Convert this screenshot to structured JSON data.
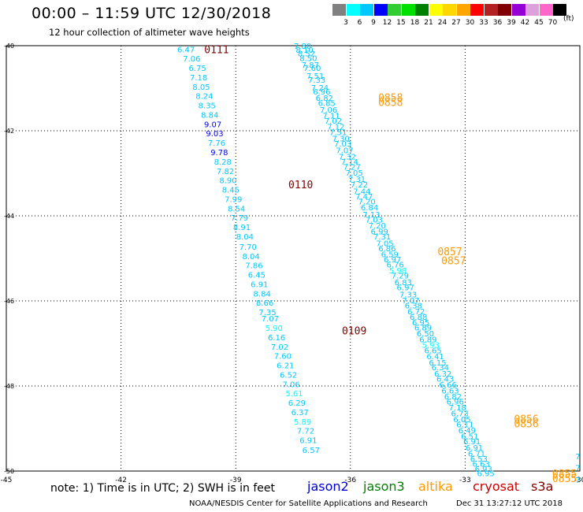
{
  "header": {
    "title": "00:00 – 11:59 UTC 12/30/2018",
    "subtitle": "12 hour collection of altimeter wave heights"
  },
  "color_scale": {
    "labels": [
      "3",
      "6",
      "9",
      "12",
      "15",
      "18",
      "21",
      "24",
      "27",
      "30",
      "33",
      "36",
      "39",
      "42",
      "45",
      "70"
    ],
    "units": "(ft)",
    "colors": [
      "#808080",
      "#00ffff",
      "#00c8ff",
      "#0000ff",
      "#32cd32",
      "#00e000",
      "#008000",
      "#ffff00",
      "#ffd700",
      "#ffa500",
      "#ff0000",
      "#b22222",
      "#800000",
      "#9400d3",
      "#dda0dd",
      "#ff66cc",
      "#000000"
    ]
  },
  "footer": {
    "note": "note:  1) Time is in UTC;  2) SWH is in feet",
    "missions": [
      {
        "name": "jason2",
        "color": "#0000cc"
      },
      {
        "name": "jason3",
        "color": "#008000"
      },
      {
        "name": "altika",
        "color": "#ff9900"
      },
      {
        "name": "cryosat",
        "color": "#cc0000"
      },
      {
        "name": "s3a",
        "color": "#800000"
      }
    ],
    "credit": "NOAA/NESDIS Center for Satellite Applications and Research",
    "timestamp": "Dec 31 13:27:12 UTC 2018"
  },
  "chart_data": {
    "type": "scatter",
    "title": "00:00 – 11:59 UTC 12/30/2018",
    "xlabel": "",
    "ylabel": "",
    "xlim": [
      -45,
      -30
    ],
    "ylim": [
      -50,
      -40
    ],
    "x_ticks": [
      "-45",
      "-42",
      "-39",
      "-36",
      "-33",
      "-30"
    ],
    "x_tick_values": [
      -45,
      -42,
      -39,
      -36,
      -33,
      -30
    ],
    "y_ticks": [
      "-40",
      "-42",
      "-44",
      "-46",
      "-48",
      "-50"
    ],
    "y_tick_values": [
      -40,
      -42,
      -44,
      -46,
      -48,
      -50
    ],
    "grid": true,
    "tracks": [
      {
        "name": "s3a",
        "time_labels": [
          {
            "text": "0111",
            "x": -39.5,
            "y": -40.08
          },
          {
            "text": "0110",
            "x": -37.3,
            "y": -43.26
          },
          {
            "text": "0109",
            "x": -35.9,
            "y": -46.69
          }
        ],
        "time_color": "#800000",
        "points": [
          {
            "x": -40.3,
            "y": -40.08,
            "v": "6.47"
          },
          {
            "x": -40.15,
            "y": -40.3,
            "v": "7.06"
          },
          {
            "x": -40.0,
            "y": -40.52,
            "v": "6.75"
          },
          {
            "x": -39.97,
            "y": -40.74,
            "v": "7.18"
          },
          {
            "x": -39.9,
            "y": -40.96,
            "v": "8.05"
          },
          {
            "x": -39.82,
            "y": -41.18,
            "v": "8.24"
          },
          {
            "x": -39.75,
            "y": -41.4,
            "v": "8.35"
          },
          {
            "x": -39.68,
            "y": -41.62,
            "v": "8.84"
          },
          {
            "x": -39.6,
            "y": -41.84,
            "v": "9.07"
          },
          {
            "x": -39.55,
            "y": -42.06,
            "v": "9.03"
          },
          {
            "x": -39.5,
            "y": -42.28,
            "v": "7.76"
          },
          {
            "x": -39.43,
            "y": -42.5,
            "v": "9.78"
          },
          {
            "x": -39.34,
            "y": -42.72,
            "v": "8.28"
          },
          {
            "x": -39.27,
            "y": -42.94,
            "v": "7.82"
          },
          {
            "x": -39.2,
            "y": -43.16,
            "v": "8.90"
          },
          {
            "x": -39.13,
            "y": -43.38,
            "v": "8.45"
          },
          {
            "x": -39.06,
            "y": -43.6,
            "v": "7.99"
          },
          {
            "x": -38.98,
            "y": -43.82,
            "v": "8.54"
          },
          {
            "x": -38.9,
            "y": -44.04,
            "v": "7.79"
          },
          {
            "x": -38.84,
            "y": -44.26,
            "v": "8.91"
          },
          {
            "x": -38.76,
            "y": -44.48,
            "v": "8.04"
          },
          {
            "x": -38.68,
            "y": -44.72,
            "v": "7.70"
          },
          {
            "x": -38.6,
            "y": -44.94,
            "v": "8.04"
          },
          {
            "x": -38.52,
            "y": -45.16,
            "v": "7.86"
          },
          {
            "x": -38.45,
            "y": -45.38,
            "v": "6.45"
          },
          {
            "x": -38.38,
            "y": -45.6,
            "v": "6.91"
          },
          {
            "x": -38.31,
            "y": -45.82,
            "v": "8.84"
          },
          {
            "x": -38.24,
            "y": -46.04,
            "v": "8.66"
          },
          {
            "x": -38.17,
            "y": -46.26,
            "v": "7.35"
          },
          {
            "x": -38.1,
            "y": -46.41,
            "v": "7.07"
          },
          {
            "x": -38.0,
            "y": -46.63,
            "v": "5.90"
          },
          {
            "x": -37.93,
            "y": -46.85,
            "v": "6.16"
          },
          {
            "x": -37.85,
            "y": -47.07,
            "v": "7.02"
          },
          {
            "x": -37.77,
            "y": -47.29,
            "v": "7.60"
          },
          {
            "x": -37.7,
            "y": -47.51,
            "v": "6.21"
          },
          {
            "x": -37.62,
            "y": -47.73,
            "v": "6.52"
          },
          {
            "x": -37.55,
            "y": -47.95,
            "v": "7.06"
          },
          {
            "x": -37.47,
            "y": -48.17,
            "v": "5.61"
          },
          {
            "x": -37.4,
            "y": -48.39,
            "v": "6.29"
          },
          {
            "x": -37.32,
            "y": -48.61,
            "v": "6.37"
          },
          {
            "x": -37.25,
            "y": -48.83,
            "v": "5.89"
          },
          {
            "x": -37.17,
            "y": -49.05,
            "v": "7.72"
          },
          {
            "x": -37.1,
            "y": -49.27,
            "v": "6.91"
          },
          {
            "x": -37.03,
            "y": -49.5,
            "v": "6.57"
          }
        ]
      },
      {
        "name": "altika",
        "time_labels": [
          {
            "text": "0858",
            "x": -34.95,
            "y": -41.21
          },
          {
            "text": "0858",
            "x": -34.95,
            "y": -41.32
          },
          {
            "text": "0857",
            "x": -33.4,
            "y": -44.83
          },
          {
            "text": "0857",
            "x": -33.3,
            "y": -45.05
          },
          {
            "text": "0856",
            "x": -31.4,
            "y": -48.77
          },
          {
            "text": "0856",
            "x": -31.4,
            "y": -48.88
          },
          {
            "text": "0855",
            "x": -30.4,
            "y": -50.06
          },
          {
            "text": "0855",
            "x": -30.4,
            "y": -50.17
          }
        ],
        "time_color": "#ff9900",
        "points": [
          {
            "x": -37.25,
            "y": -40.0,
            "v": "7.80"
          },
          {
            "x": -37.2,
            "y": -40.09,
            "v": "8.10"
          },
          {
            "x": -37.15,
            "y": -40.18,
            "v": "8.52"
          },
          {
            "x": -37.1,
            "y": -40.29,
            "v": "8.50"
          },
          {
            "x": -37.05,
            "y": -40.44,
            "v": "7.87"
          },
          {
            "x": -37.0,
            "y": -40.52,
            "v": "7.60"
          },
          {
            "x": -36.92,
            "y": -40.7,
            "v": "7.51"
          },
          {
            "x": -36.88,
            "y": -40.8,
            "v": "7.33"
          },
          {
            "x": -36.8,
            "y": -40.98,
            "v": "7.24"
          },
          {
            "x": -36.75,
            "y": -41.07,
            "v": "6.96"
          },
          {
            "x": -36.68,
            "y": -41.22,
            "v": "6.82"
          },
          {
            "x": -36.62,
            "y": -41.34,
            "v": "6.85"
          },
          {
            "x": -36.57,
            "y": -41.5,
            "v": "7.06"
          },
          {
            "x": -36.5,
            "y": -41.64,
            "v": "7.11"
          },
          {
            "x": -36.45,
            "y": -41.76,
            "v": "7.02"
          },
          {
            "x": -36.38,
            "y": -41.9,
            "v": "7.12"
          },
          {
            "x": -36.32,
            "y": -42.03,
            "v": "7.51"
          },
          {
            "x": -36.25,
            "y": -42.18,
            "v": "7.30"
          },
          {
            "x": -36.2,
            "y": -42.3,
            "v": "7.03"
          },
          {
            "x": -36.15,
            "y": -42.45,
            "v": "7.07"
          },
          {
            "x": -36.08,
            "y": -42.6,
            "v": "7.32"
          },
          {
            "x": -36.02,
            "y": -42.72,
            "v": "7.14"
          },
          {
            "x": -35.96,
            "y": -42.84,
            "v": "7.27"
          },
          {
            "x": -35.9,
            "y": -42.98,
            "v": "7.05"
          },
          {
            "x": -35.83,
            "y": -43.13,
            "v": "7.31"
          },
          {
            "x": -35.77,
            "y": -43.26,
            "v": "7.22"
          },
          {
            "x": -35.7,
            "y": -43.42,
            "v": "7.44"
          },
          {
            "x": -35.64,
            "y": -43.54,
            "v": "7.47"
          },
          {
            "x": -35.57,
            "y": -43.66,
            "v": "7.20"
          },
          {
            "x": -35.5,
            "y": -43.8,
            "v": "6.84"
          },
          {
            "x": -35.45,
            "y": -43.96,
            "v": "7.13"
          },
          {
            "x": -35.38,
            "y": -44.08,
            "v": "7.03"
          },
          {
            "x": -35.3,
            "y": -44.22,
            "v": "7.20"
          },
          {
            "x": -35.24,
            "y": -44.36,
            "v": "6.99"
          },
          {
            "x": -35.17,
            "y": -44.48,
            "v": "7.31"
          },
          {
            "x": -35.1,
            "y": -44.64,
            "v": "7.05"
          },
          {
            "x": -35.04,
            "y": -44.76,
            "v": "6.86"
          },
          {
            "x": -34.97,
            "y": -44.9,
            "v": "6.59"
          },
          {
            "x": -34.9,
            "y": -45.02,
            "v": "6.97"
          },
          {
            "x": -34.83,
            "y": -45.14,
            "v": "6.76"
          },
          {
            "x": -34.76,
            "y": -45.28,
            "v": "5.98"
          },
          {
            "x": -34.7,
            "y": -45.4,
            "v": "7.29"
          },
          {
            "x": -34.62,
            "y": -45.56,
            "v": "6.83"
          },
          {
            "x": -34.56,
            "y": -45.68,
            "v": "6.97"
          },
          {
            "x": -34.49,
            "y": -45.84,
            "v": "7.33"
          },
          {
            "x": -34.42,
            "y": -45.98,
            "v": "7.07"
          },
          {
            "x": -34.35,
            "y": -46.1,
            "v": "6.38"
          },
          {
            "x": -34.28,
            "y": -46.24,
            "v": "6.72"
          },
          {
            "x": -34.22,
            "y": -46.37,
            "v": "6.88"
          },
          {
            "x": -34.16,
            "y": -46.5,
            "v": "6.95"
          },
          {
            "x": -34.1,
            "y": -46.62,
            "v": "6.89"
          },
          {
            "x": -34.04,
            "y": -46.76,
            "v": "6.50"
          },
          {
            "x": -33.97,
            "y": -46.9,
            "v": "6.89"
          },
          {
            "x": -33.9,
            "y": -47.03,
            "v": "5.93"
          },
          {
            "x": -33.84,
            "y": -47.16,
            "v": "6.65"
          },
          {
            "x": -33.78,
            "y": -47.3,
            "v": "6.41"
          },
          {
            "x": -33.72,
            "y": -47.44,
            "v": "6.15"
          },
          {
            "x": -33.65,
            "y": -47.56,
            "v": "6.34"
          },
          {
            "x": -33.58,
            "y": -47.7,
            "v": "6.32"
          },
          {
            "x": -33.52,
            "y": -47.82,
            "v": "6.43"
          },
          {
            "x": -33.45,
            "y": -47.96,
            "v": "6.66"
          },
          {
            "x": -33.39,
            "y": -48.1,
            "v": "6.63"
          },
          {
            "x": -33.32,
            "y": -48.24,
            "v": "6.82"
          },
          {
            "x": -33.26,
            "y": -48.36,
            "v": "6.96"
          },
          {
            "x": -33.2,
            "y": -48.5,
            "v": "7.18"
          },
          {
            "x": -33.14,
            "y": -48.64,
            "v": "6.73"
          },
          {
            "x": -33.08,
            "y": -48.78,
            "v": "6.05"
          },
          {
            "x": -33.0,
            "y": -48.9,
            "v": "6.11"
          },
          {
            "x": -32.95,
            "y": -49.04,
            "v": "6.49"
          },
          {
            "x": -32.88,
            "y": -49.18,
            "v": "6.51"
          },
          {
            "x": -32.82,
            "y": -49.3,
            "v": "6.91"
          },
          {
            "x": -32.76,
            "y": -49.44,
            "v": "6.91"
          },
          {
            "x": -32.7,
            "y": -49.58,
            "v": "6.71"
          },
          {
            "x": -32.64,
            "y": -49.7,
            "v": "6.53"
          },
          {
            "x": -32.58,
            "y": -49.82,
            "v": "6.63"
          },
          {
            "x": -32.52,
            "y": -49.94,
            "v": "6.93"
          },
          {
            "x": -32.46,
            "y": -50.05,
            "v": "6.95"
          },
          {
            "x": -30.05,
            "y": -49.65,
            "v": "7"
          },
          {
            "x": -30.05,
            "y": -49.92,
            "v": "7"
          },
          {
            "x": -30.05,
            "y": -50.2,
            "v": "7"
          }
        ]
      }
    ]
  }
}
